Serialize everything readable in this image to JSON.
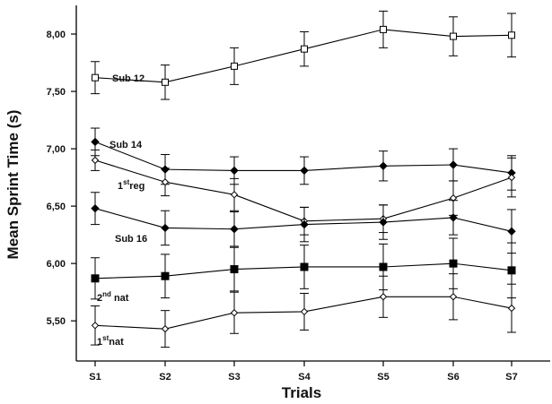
{
  "chart_data": {
    "type": "line",
    "title": "",
    "xlabel": "Trials",
    "ylabel": "Mean Sprint Time (s)",
    "categories": [
      "S1",
      "S2",
      "S3",
      "S4",
      "S5",
      "S6",
      "S7"
    ],
    "ylim": [
      5.15,
      8.25
    ],
    "yticks": [
      5.5,
      6.0,
      6.5,
      7.0,
      7.5,
      8.0
    ],
    "ytick_labels": [
      "5,50",
      "6,00",
      "6,50",
      "7,00",
      "7,50",
      "8,00"
    ],
    "grid": false,
    "series": [
      {
        "name": "Sub 12",
        "marker": "open-square",
        "values": [
          7.62,
          7.58,
          7.72,
          7.87,
          8.04,
          7.98,
          7.99
        ],
        "err": [
          0.14,
          0.15,
          0.16,
          0.15,
          0.16,
          0.17,
          0.19
        ]
      },
      {
        "name": "Sub 14",
        "marker": "filled-diamond",
        "values": [
          7.06,
          6.82,
          6.81,
          6.81,
          6.85,
          6.86,
          6.79
        ],
        "err": [
          0.12,
          0.13,
          0.12,
          0.12,
          0.13,
          0.14,
          0.15
        ]
      },
      {
        "name": "1streg",
        "label_parts": [
          "1",
          "st",
          "reg"
        ],
        "marker": "open-diamond",
        "values": [
          6.9,
          6.71,
          6.6,
          6.37,
          6.39,
          6.57,
          6.75
        ],
        "err": [
          0.09,
          0.12,
          0.14,
          0.12,
          0.12,
          0.15,
          0.17
        ]
      },
      {
        "name": "Sub 16",
        "marker": "filled-diamond",
        "values": [
          6.48,
          6.31,
          6.3,
          6.34,
          6.36,
          6.4,
          6.28
        ],
        "err": [
          0.14,
          0.15,
          0.15,
          0.15,
          0.15,
          0.15,
          0.19
        ]
      },
      {
        "name": "2ndnat",
        "label_parts": [
          "2",
          "nd",
          " nat"
        ],
        "marker": "filled-square",
        "values": [
          5.87,
          5.89,
          5.95,
          5.97,
          5.97,
          6.0,
          5.94
        ],
        "err": [
          0.18,
          0.19,
          0.19,
          0.19,
          0.2,
          0.22,
          0.24
        ]
      },
      {
        "name": "1stnat",
        "label_parts": [
          "1",
          "st",
          "nat"
        ],
        "marker": "open-diamond",
        "values": [
          5.46,
          5.43,
          5.57,
          5.58,
          5.71,
          5.71,
          5.61
        ],
        "err": [
          0.17,
          0.16,
          0.18,
          0.16,
          0.18,
          0.2,
          0.21
        ]
      }
    ],
    "colors": {
      "line": "#000000",
      "marker_fill": "#000000",
      "marker_open_fill": "#ffffff"
    }
  }
}
